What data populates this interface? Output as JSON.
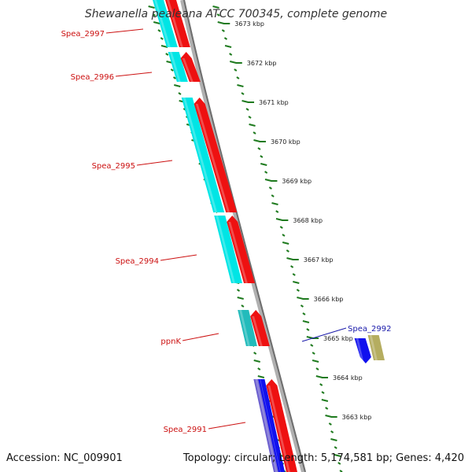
{
  "title": "Shewanella pealeana ATCC 700345, complete genome",
  "footer": {
    "accession": "Accession: NC_009901",
    "summary": "Topology: circular; Length: 5,174,581 bp; Genes: 4,420"
  },
  "colors": {
    "backbone": "#8a8a8a",
    "tick": "#1e7a1e",
    "forward_cds": "#ee1111",
    "forward_cds_shade": "#d4d400",
    "reverse_cds": "#00e5e5",
    "reverse_cds_alt": "#22bbbb",
    "rna": "#1111ee",
    "other": "#b5ad60",
    "label_red": "#cc1111",
    "label_blue": "#1a1aaa"
  },
  "chart_data": {
    "type": "genome-map",
    "ticks": [
      {
        "label": "3673 kbp"
      },
      {
        "label": "3672 kbp"
      },
      {
        "label": "3671 kbp"
      },
      {
        "label": "3670 kbp"
      },
      {
        "label": "3669 kbp"
      },
      {
        "label": "3668 kbp"
      },
      {
        "label": "3667 kbp"
      },
      {
        "label": "3666 kbp"
      },
      {
        "label": "3665 kbp"
      },
      {
        "label": "3664 kbp"
      },
      {
        "label": "3663 kbp"
      }
    ],
    "genes": [
      {
        "label": "Spea_2997",
        "color": "red"
      },
      {
        "label": "Spea_2996",
        "color": "red"
      },
      {
        "label": "Spea_2995",
        "color": "red"
      },
      {
        "label": "Spea_2994",
        "color": "red"
      },
      {
        "label": "ppnK",
        "color": "red"
      },
      {
        "label": "Spea_2992",
        "color": "blue"
      },
      {
        "label": "Spea_2991",
        "color": "red"
      }
    ]
  }
}
